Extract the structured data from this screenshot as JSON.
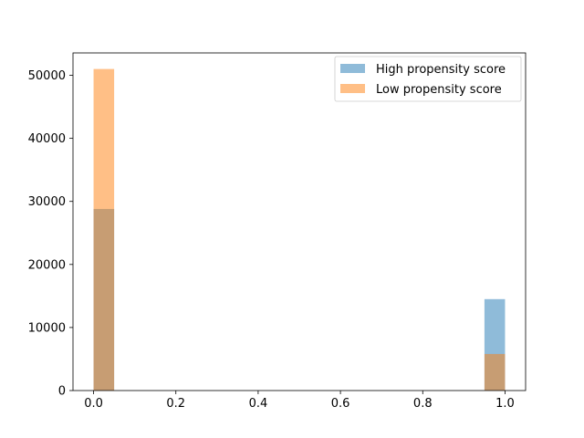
{
  "chart_data": {
    "type": "bar",
    "xlim": [
      -0.05,
      1.05
    ],
    "ylim": [
      0,
      53550
    ],
    "xticks": [
      0.0,
      0.2,
      0.4,
      0.6,
      0.8,
      1.0
    ],
    "xtick_labels": [
      "0.0",
      "0.2",
      "0.4",
      "0.6",
      "0.8",
      "1.0"
    ],
    "yticks": [
      0,
      10000,
      20000,
      30000,
      40000,
      50000
    ],
    "ytick_labels": [
      "0",
      "10000",
      "20000",
      "30000",
      "40000",
      "50000"
    ],
    "bin_width": 0.05,
    "grid": false,
    "legend_position": "top-right",
    "colors": {
      "high": "#1f77b4",
      "low": "#ff7f0e",
      "bar_alpha": 0.5
    },
    "series": [
      {
        "name": "High propensity score",
        "bins": [
          {
            "x0": 0.0,
            "x1": 0.05,
            "value": 28800
          },
          {
            "x0": 0.95,
            "x1": 1.0,
            "value": 14500
          }
        ]
      },
      {
        "name": "Low propensity score",
        "bins": [
          {
            "x0": 0.0,
            "x1": 0.05,
            "value": 51000
          },
          {
            "x0": 0.95,
            "x1": 1.0,
            "value": 5800
          }
        ]
      }
    ]
  }
}
